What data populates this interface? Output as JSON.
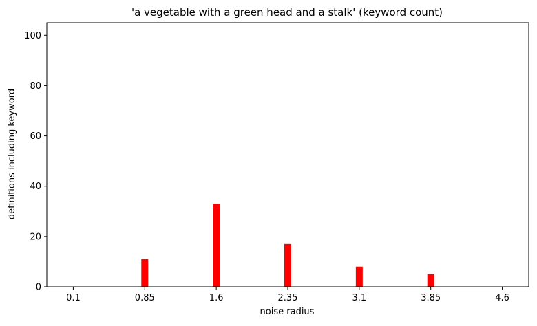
{
  "chart_data": {
    "type": "bar",
    "title": "'a vegetable with a green head and a stalk' (keyword count)",
    "xlabel": "noise radius",
    "ylabel": "definitions including keyword",
    "x_ticks": [
      "0.1",
      "0.85",
      "1.6",
      "2.35",
      "3.1",
      "3.85",
      "4.6"
    ],
    "y_ticks": [
      0,
      20,
      40,
      60,
      80,
      100
    ],
    "ylim": [
      0,
      105
    ],
    "xlim": [
      -0.37,
      6.37
    ],
    "grid": false,
    "bar_color": "#ff0000",
    "bars": [
      {
        "category": "0.1",
        "value": 0
      },
      {
        "category": "0.85",
        "value": 11
      },
      {
        "category": "1.6",
        "value": 33
      },
      {
        "category": "2.35",
        "value": 17
      },
      {
        "category": "3.1",
        "value": 8
      },
      {
        "category": "3.85",
        "value": 5
      },
      {
        "category": "4.6",
        "value": 0
      }
    ]
  }
}
